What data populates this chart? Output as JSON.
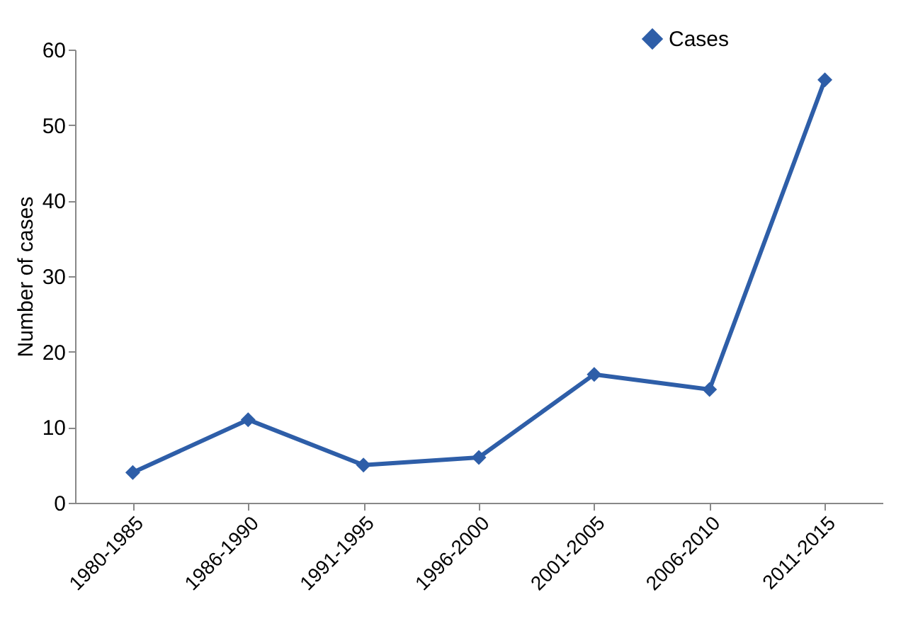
{
  "chart_data": {
    "type": "line",
    "ylabel": "Number of cases",
    "categories": [
      "1980-1985",
      "1986-1990",
      "1991-1995",
      "1996-2000",
      "2001-2005",
      "2006-2010",
      "2011-2015"
    ],
    "series": [
      {
        "name": "Cases",
        "color": "#2e5ea8",
        "values": [
          4,
          11,
          5,
          6,
          17,
          15,
          56
        ]
      }
    ],
    "ylim": [
      0,
      60
    ],
    "yticks": [
      0,
      10,
      20,
      30,
      40,
      50,
      60
    ],
    "grid": false,
    "legend": "top right",
    "marker": "diamond",
    "line_style": "solid"
  }
}
